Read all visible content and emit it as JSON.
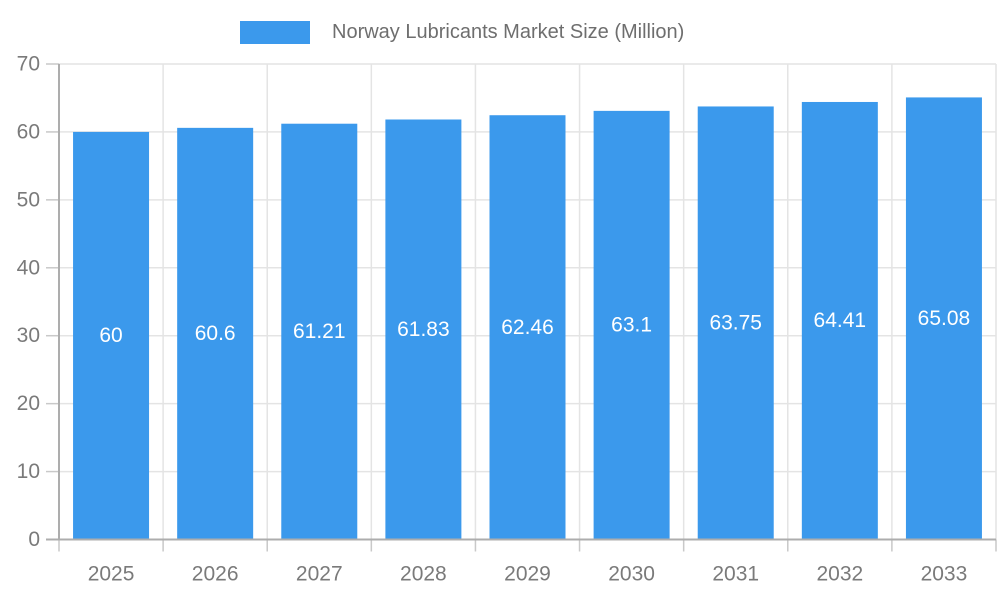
{
  "legend": {
    "label": "Norway Lubricants Market Size (Million)"
  },
  "colors": {
    "bar": "#3B99EC",
    "grid": "#E4E4E4",
    "tick": "#C9C9C9",
    "axis": "#ADADAD",
    "tick_text": "#7A7A7A",
    "legend_text": "#6E6E6E",
    "value_text": "#FFFFFF",
    "background": "#FFFFFF"
  },
  "chart_data": {
    "type": "bar",
    "title": "Norway Lubricants Market Size (Million)",
    "categories": [
      "2025",
      "2026",
      "2027",
      "2028",
      "2029",
      "2030",
      "2031",
      "2032",
      "2033"
    ],
    "values": [
      60,
      60.6,
      61.21,
      61.83,
      62.46,
      63.1,
      63.75,
      64.41,
      65.08
    ],
    "value_labels": [
      "60",
      "60.6",
      "61.21",
      "61.83",
      "62.46",
      "63.1",
      "63.75",
      "64.41",
      "65.08"
    ],
    "xlabel": "",
    "ylabel": "",
    "ylim": [
      0,
      70
    ],
    "yticks": [
      0,
      10,
      20,
      30,
      40,
      50,
      60,
      70
    ],
    "grid": true,
    "legend_position": "top",
    "value_label_position": "bar-center"
  }
}
